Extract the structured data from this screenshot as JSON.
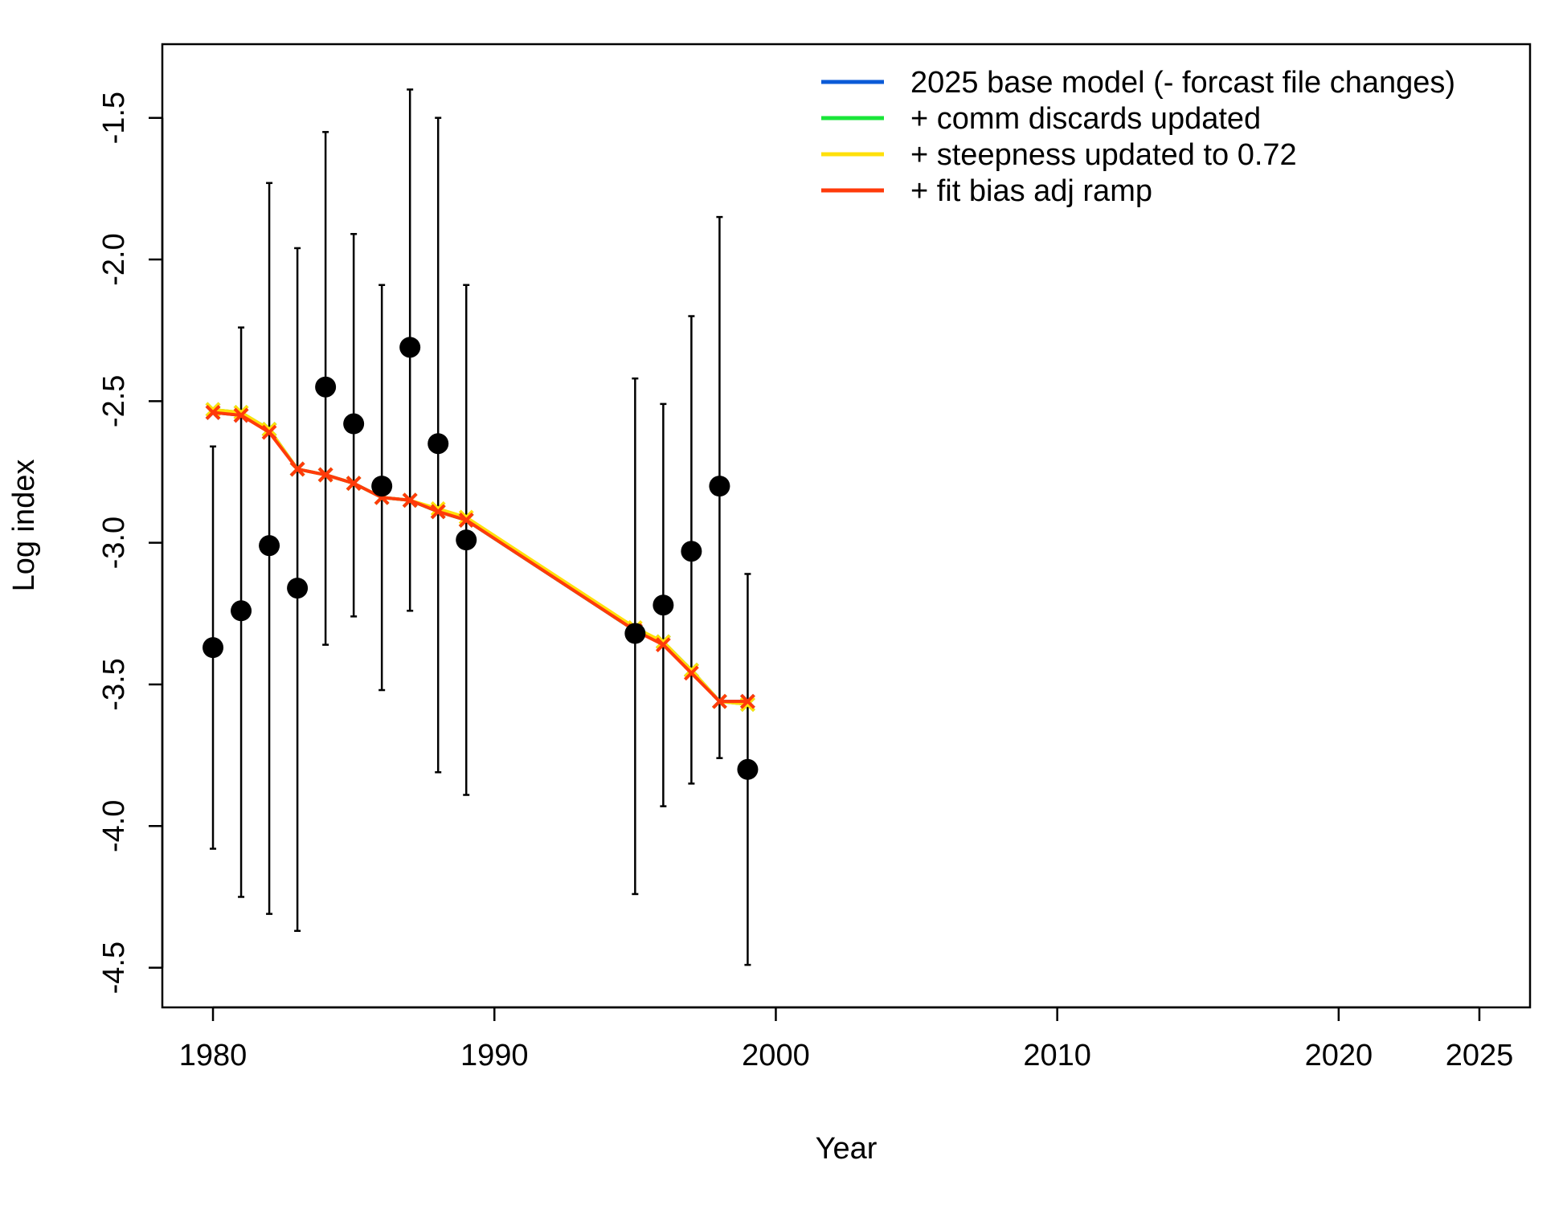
{
  "chart_data": {
    "type": "line",
    "xlabel": "Year",
    "ylabel": "Log index",
    "xlim": [
      1978.2,
      2026.8
    ],
    "ylim": [
      -4.64,
      -1.24
    ],
    "x_ticks": [
      1980,
      1990,
      2000,
      2010,
      2020,
      2025
    ],
    "y_ticks": [
      -1.5,
      -2.0,
      -2.5,
      -3.0,
      -3.5,
      -4.0,
      -4.5
    ],
    "grid": false,
    "legend_position": "top-right",
    "observed": {
      "years": [
        1980,
        1981,
        1982,
        1983,
        1984,
        1985,
        1986,
        1987,
        1988,
        1989,
        1995,
        1996,
        1997,
        1998,
        1999
      ],
      "values": [
        -3.37,
        -3.24,
        -3.01,
        -3.16,
        -2.45,
        -2.58,
        -2.8,
        -2.31,
        -2.65,
        -2.99,
        -3.32,
        -3.22,
        -3.03,
        -2.8,
        -3.8
      ],
      "lower": [
        -4.08,
        -4.25,
        -4.31,
        -4.37,
        -3.36,
        -3.26,
        -3.52,
        -3.24,
        -3.81,
        -3.89,
        -4.24,
        -3.93,
        -3.85,
        -3.76,
        -4.49
      ],
      "upper": [
        -2.66,
        -2.24,
        -1.73,
        -1.96,
        -1.55,
        -1.91,
        -2.09,
        -1.4,
        -1.5,
        -2.09,
        -2.42,
        -2.51,
        -2.2,
        -1.85,
        -3.11
      ]
    },
    "series": [
      {
        "name": "2025 base model (- forcast file changes)",
        "color": "#0b5bd7",
        "x": [
          1980,
          1981,
          1982,
          1983,
          1984,
          1985,
          1986,
          1987,
          1988,
          1989,
          1995,
          1996,
          1997,
          1998,
          1999
        ],
        "values": [
          -2.54,
          -2.55,
          -2.6,
          -2.74,
          -2.76,
          -2.79,
          -2.84,
          -2.85,
          -2.89,
          -2.92,
          -3.31,
          -3.35,
          -3.45,
          -3.56,
          -3.56
        ]
      },
      {
        "name": "+ comm discards updated",
        "color": "#19e639",
        "x": [
          1980,
          1981,
          1982,
          1983,
          1984,
          1985,
          1986,
          1987,
          1988,
          1989,
          1995,
          1996,
          1997,
          1998,
          1999
        ],
        "values": [
          -2.53,
          -2.54,
          -2.6,
          -2.74,
          -2.76,
          -2.79,
          -2.84,
          -2.85,
          -2.89,
          -2.92,
          -3.31,
          -3.35,
          -3.45,
          -3.56,
          -3.57
        ]
      },
      {
        "name": "+ steepness updated to 0.72",
        "color": "#ffe00a",
        "x": [
          1980,
          1981,
          1982,
          1983,
          1984,
          1985,
          1986,
          1987,
          1988,
          1989,
          1995,
          1996,
          1997,
          1998,
          1999
        ],
        "values": [
          -2.53,
          -2.54,
          -2.6,
          -2.74,
          -2.76,
          -2.79,
          -2.84,
          -2.85,
          -2.88,
          -2.91,
          -3.3,
          -3.35,
          -3.45,
          -3.56,
          -3.57
        ]
      },
      {
        "name": "+ fit bias adj ramp",
        "color": "#ff3a0a",
        "x": [
          1980,
          1981,
          1982,
          1983,
          1984,
          1985,
          1986,
          1987,
          1988,
          1989,
          1995,
          1996,
          1997,
          1998,
          1999
        ],
        "values": [
          -2.54,
          -2.55,
          -2.61,
          -2.74,
          -2.76,
          -2.79,
          -2.84,
          -2.85,
          -2.89,
          -2.92,
          -3.31,
          -3.36,
          -3.46,
          -3.56,
          -3.56
        ]
      }
    ]
  }
}
